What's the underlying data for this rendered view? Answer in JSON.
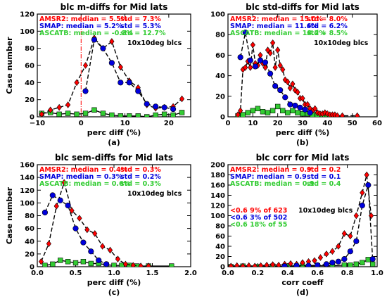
{
  "colors": {
    "AMSR2": "#ff0000",
    "SMAP": "#0000dd",
    "ASCATB": "#33cc33",
    "vline": "#ff0000"
  },
  "chart_data": [
    {
      "type": "line",
      "panel": "(a)",
      "title": "blc m-diffs for Mid lats",
      "xlabel": "perc diff (%)",
      "ylabel": "Case number",
      "xlim": [
        -10,
        25
      ],
      "ylim": [
        0,
        120
      ],
      "xticks": [
        -10,
        0,
        10,
        20
      ],
      "yticks": [
        0,
        20,
        40,
        60,
        80,
        100,
        120
      ],
      "note": "10x10deg blcs",
      "vline": 0,
      "stats": [
        {
          "name": "AMSR2",
          "median": "AMSR2: median = 5.5%",
          "std": "std = 7.3%"
        },
        {
          "name": "SMAP",
          "median": "SMAP: median = 5.2%",
          "std": "std = 5.3%"
        },
        {
          "name": "ASCATB",
          "median": "ASCATB: median = -0.3%",
          "std": "std = 12.7%"
        }
      ],
      "series": [
        {
          "name": "AMSR2",
          "marker": "diamond",
          "dashed": true,
          "x": [
            -9,
            -7,
            -5,
            -3,
            -1,
            1,
            3,
            5,
            7,
            9,
            11,
            13,
            15,
            17,
            19,
            21,
            23
          ],
          "y": [
            3,
            8,
            11,
            14,
            40,
            60,
            92,
            80,
            88,
            58,
            42,
            34,
            14,
            10,
            11,
            12,
            21
          ]
        },
        {
          "name": "SMAP",
          "marker": "circle",
          "dashed": true,
          "x": [
            1,
            3,
            5,
            7,
            9,
            11,
            13,
            15,
            17,
            19,
            21
          ],
          "y": [
            30,
            90,
            80,
            63,
            40,
            40,
            30,
            15,
            12,
            11,
            9
          ]
        },
        {
          "name": "ASCATB",
          "marker": "square",
          "dashed": false,
          "x": [
            -9,
            -7,
            -5,
            -3,
            -1,
            1,
            3,
            5,
            7,
            9,
            11,
            13,
            15,
            17,
            19,
            21,
            23
          ],
          "y": [
            4,
            5,
            3,
            4,
            3,
            4,
            8,
            4,
            2,
            1,
            1,
            1,
            0,
            2,
            3,
            2,
            5
          ]
        }
      ]
    },
    {
      "type": "line",
      "panel": "(b)",
      "title": "blc std-diffs for Mid lats",
      "xlabel": "perc diff (%)",
      "ylabel": "",
      "xlim": [
        0,
        60
      ],
      "ylim": [
        0,
        100
      ],
      "xticks": [
        0,
        10,
        20,
        30,
        40,
        50,
        60
      ],
      "yticks": [
        0,
        20,
        40,
        60,
        80,
        100
      ],
      "note": "10x10deg blcs",
      "stats": [
        {
          "name": "AMSR2",
          "median": "AMSR2: median = 15.0%",
          "std": "std = 8.0%"
        },
        {
          "name": "SMAP",
          "median": "SMAP: median = 11.6%",
          "std": "std = 6.2%"
        },
        {
          "name": "ASCATB",
          "median": "ASCATB: median = 18.2%",
          "std": "std = 8.5%"
        }
      ],
      "series": [
        {
          "name": "AMSR2",
          "marker": "diamond",
          "dashed": true,
          "x": [
            4,
            5,
            6,
            7,
            8,
            9,
            10,
            11,
            12,
            13,
            14,
            15,
            16,
            17,
            18,
            19,
            20,
            21,
            22,
            23,
            24,
            25,
            26,
            27,
            28,
            29,
            30,
            31,
            32,
            33,
            34,
            35,
            36,
            37,
            38,
            39,
            40,
            41,
            42,
            43,
            44,
            46,
            52
          ],
          "y": [
            2,
            6,
            46,
            48,
            54,
            48,
            70,
            52,
            50,
            60,
            52,
            48,
            65,
            62,
            72,
            48,
            65,
            50,
            46,
            36,
            34,
            28,
            32,
            26,
            24,
            18,
            18,
            12,
            12,
            8,
            6,
            8,
            4,
            3,
            3,
            4,
            3,
            2,
            2,
            2,
            1,
            1,
            1
          ]
        },
        {
          "name": "SMAP",
          "marker": "circle",
          "dashed": true,
          "x": [
            5,
            7,
            9,
            11,
            13,
            15,
            17,
            19,
            21,
            23,
            25,
            27,
            29,
            31,
            33
          ],
          "y": [
            58,
            82,
            55,
            49,
            55,
            53,
            42,
            30,
            26,
            19,
            12,
            11,
            9,
            7,
            4
          ]
        },
        {
          "name": "ASCATB",
          "marker": "square",
          "dashed": false,
          "x": [
            4,
            6,
            8,
            10,
            12,
            14,
            16,
            18,
            20,
            22,
            24,
            26,
            28,
            30,
            32,
            34,
            36,
            38,
            40,
            42
          ],
          "y": [
            1,
            2,
            4,
            6,
            8,
            5,
            4,
            6,
            10,
            6,
            4,
            6,
            4,
            3,
            3,
            2,
            2,
            2,
            1,
            1
          ]
        }
      ]
    },
    {
      "type": "line",
      "panel": "(c)",
      "title": "blc sem-diffs for Mid lats",
      "xlabel": "perc diff (%)",
      "ylabel": "Case number",
      "xlim": [
        0,
        2
      ],
      "ylim": [
        0,
        160
      ],
      "xticks": [
        0.0,
        0.5,
        1.0,
        1.5,
        2.0
      ],
      "yticks": [
        0,
        20,
        40,
        60,
        80,
        100,
        120,
        140,
        160
      ],
      "tick_labels_x": [
        "0.0",
        "0.5",
        "1.0",
        "1.5",
        "2.0"
      ],
      "note": "10x10deg blcs",
      "stats": [
        {
          "name": "AMSR2",
          "median": "AMSR2: median = 0.4%",
          "std": "std = 0.3%"
        },
        {
          "name": "SMAP",
          "median": "SMAP: median = 0.3%",
          "std": "std = 0.2%"
        },
        {
          "name": "ASCATB",
          "median": "ASCATB: median = 0.6%",
          "std": "std = 0.3%"
        }
      ],
      "series": [
        {
          "name": "AMSR2",
          "marker": "diamond",
          "dashed": true,
          "x": [
            0.05,
            0.15,
            0.25,
            0.35,
            0.45,
            0.55,
            0.65,
            0.75,
            0.85,
            0.95,
            1.05,
            1.15,
            1.25,
            1.35,
            1.45
          ],
          "y": [
            8,
            36,
            95,
            132,
            88,
            76,
            58,
            52,
            32,
            26,
            12,
            4,
            2,
            1,
            1
          ]
        },
        {
          "name": "SMAP",
          "marker": "circle",
          "dashed": true,
          "x": [
            0.1,
            0.2,
            0.3,
            0.4,
            0.5,
            0.6,
            0.7,
            0.8,
            0.9
          ],
          "y": [
            85,
            112,
            104,
            96,
            60,
            38,
            24,
            10,
            4
          ]
        },
        {
          "name": "ASCATB",
          "marker": "square",
          "dashed": false,
          "x": [
            0.1,
            0.2,
            0.3,
            0.4,
            0.5,
            0.6,
            0.7,
            0.8,
            0.9,
            1.0,
            1.1,
            1.2,
            1.3,
            1.45,
            1.75
          ],
          "y": [
            2,
            4,
            10,
            8,
            6,
            8,
            5,
            5,
            3,
            2,
            2,
            2,
            1,
            1,
            1
          ]
        }
      ]
    },
    {
      "type": "line",
      "panel": "(d)",
      "title": "blc corr for Mid lats",
      "xlabel": "corr coeff",
      "ylabel": "",
      "xlim": [
        0,
        1
      ],
      "ylim": [
        0,
        200
      ],
      "xticks": [
        0.0,
        0.2,
        0.4,
        0.6,
        0.8,
        1.0
      ],
      "yticks": [
        0,
        20,
        40,
        60,
        80,
        100,
        120,
        140,
        160,
        180,
        200
      ],
      "tick_labels_x": [
        "0.0",
        "0.2",
        "0.4",
        "0.6",
        "0.8",
        "1.0"
      ],
      "note": "10x10deg blcs",
      "stats": [
        {
          "name": "AMSR2",
          "median": "AMSR2: median = 0.9",
          "std": "std = 0.2"
        },
        {
          "name": "SMAP",
          "median": "SMAP: median = 0.9",
          "std": "std = 0.1"
        },
        {
          "name": "ASCATB",
          "median": "ASCATB: median = 0.9",
          "std": "std = 0.4"
        }
      ],
      "threshold_notes": [
        {
          "name": "AMSR2",
          "text": "<0.6 9% of 623"
        },
        {
          "name": "SMAP",
          "text": "<0.6 3% of 502"
        },
        {
          "name": "ASCATB",
          "text": "<0.6 18% of 55"
        }
      ],
      "series": [
        {
          "name": "AMSR2",
          "marker": "diamond",
          "dashed": true,
          "x": [
            0.02,
            0.06,
            0.1,
            0.14,
            0.18,
            0.22,
            0.26,
            0.3,
            0.34,
            0.38,
            0.42,
            0.46,
            0.5,
            0.54,
            0.58,
            0.62,
            0.66,
            0.7,
            0.74,
            0.78,
            0.82,
            0.86,
            0.9,
            0.93,
            0.96
          ],
          "y": [
            1,
            2,
            1,
            2,
            1,
            2,
            3,
            4,
            3,
            5,
            6,
            5,
            8,
            10,
            12,
            18,
            25,
            30,
            40,
            65,
            60,
            100,
            145,
            180,
            100
          ]
        },
        {
          "name": "SMAP",
          "marker": "circle",
          "dashed": true,
          "x": [
            0.38,
            0.46,
            0.54,
            0.6,
            0.66,
            0.7,
            0.74,
            0.78,
            0.82,
            0.86,
            0.9,
            0.94,
            0.97
          ],
          "y": [
            1,
            2,
            2,
            3,
            5,
            8,
            10,
            15,
            30,
            50,
            120,
            160,
            15
          ]
        },
        {
          "name": "ASCATB",
          "marker": "square",
          "dashed": false,
          "x": [
            0.02,
            0.1,
            0.2,
            0.3,
            0.4,
            0.5,
            0.6,
            0.7,
            0.78,
            0.82,
            0.86,
            0.9,
            0.94,
            0.97
          ],
          "y": [
            0,
            1,
            0,
            1,
            1,
            1,
            2,
            2,
            3,
            3,
            5,
            8,
            14,
            5
          ]
        }
      ]
    }
  ]
}
